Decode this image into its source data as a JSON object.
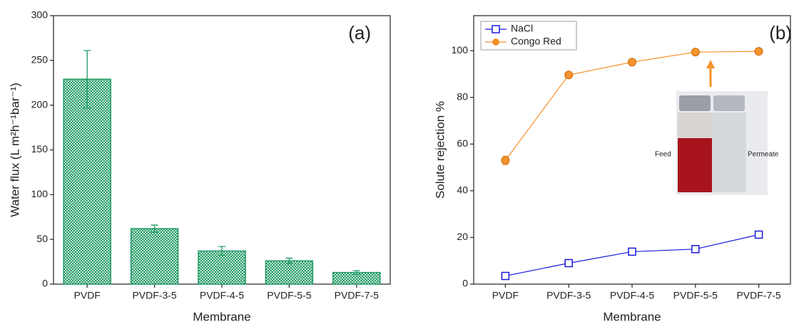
{
  "chart_data": [
    {
      "type": "bar",
      "annotation": "(a)",
      "xlabel": "Membrane",
      "ylabel": "Water flux (L m²h⁻¹bar⁻¹)",
      "categories": [
        "PVDF",
        "PVDF-3-5",
        "PVDF-4-5",
        "PVDF-5-5",
        "PVDF-7-5"
      ],
      "values": [
        229,
        62,
        37,
        26,
        13
      ],
      "errors": [
        32,
        4,
        5,
        3,
        2
      ],
      "color": "#1f9a63",
      "ylim": [
        0,
        300
      ],
      "yticks": [
        0,
        50,
        100,
        150,
        200,
        250,
        300
      ]
    },
    {
      "type": "line",
      "annotation": "(b)",
      "xlabel": "Membrane",
      "ylabel": "Solute rejection %",
      "categories": [
        "PVDF",
        "PVDF-3-5",
        "PVDF-4-5",
        "PVDF-5-5",
        "PVDF-7-5"
      ],
      "series": [
        {
          "name": "NaCl",
          "color": "#1a1adb",
          "marker": "square",
          "values": [
            3.5,
            9,
            13.9,
            15,
            21.2
          ],
          "errors": [
            1,
            0.8,
            1.3,
            0.8,
            0.9
          ]
        },
        {
          "name": "Congo Red",
          "color": "#f5922b",
          "marker": "circle",
          "values": [
            53,
            89.6,
            95.1,
            99.4,
            99.7
          ],
          "errors": [
            1.8,
            0.6,
            0.5,
            0.3,
            0.3
          ]
        }
      ],
      "ylim": [
        0,
        115
      ],
      "yticks": [
        0,
        20,
        40,
        60,
        80,
        100
      ],
      "legend": "upper left",
      "inset_labels": [
        "Feed",
        "Permeate"
      ]
    }
  ]
}
